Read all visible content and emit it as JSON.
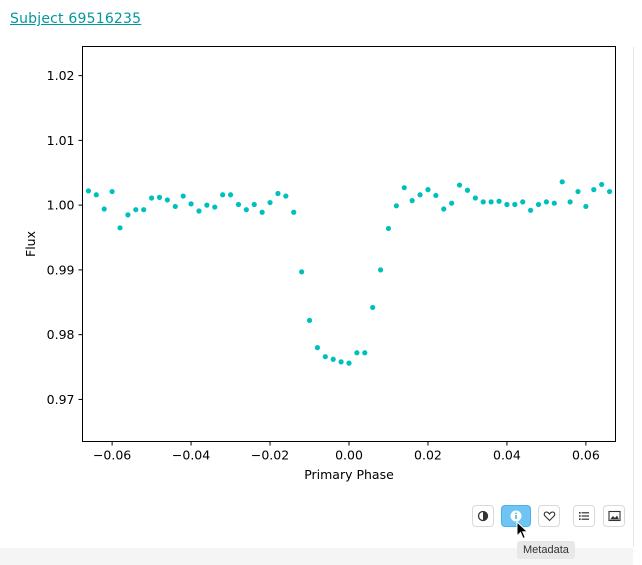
{
  "subject_link": "Subject 69516235",
  "tooltip": "Metadata",
  "toolbar": {
    "buttons": [
      {
        "name": "invert-colors-button",
        "icon": "half-circle-icon",
        "active": false
      },
      {
        "name": "metadata-button",
        "icon": "info-icon",
        "active": true
      },
      {
        "name": "favorite-button",
        "icon": "heart-icon",
        "active": false
      },
      {
        "name": "collections-button",
        "icon": "list-icon",
        "active": false
      },
      {
        "name": "image-button",
        "icon": "image-icon",
        "active": false
      }
    ],
    "accent_color": "#6ec4f3"
  },
  "chart_data": {
    "type": "scatter",
    "title": "",
    "xlabel": "Primary Phase",
    "ylabel": "Flux",
    "xlim": [
      -0.0675,
      0.0675
    ],
    "ylim": [
      0.9635,
      1.0245
    ],
    "xticks": [
      -0.06,
      -0.04,
      -0.02,
      0.0,
      0.02,
      0.04,
      0.06
    ],
    "xtick_labels": [
      "−0.06",
      "−0.04",
      "−0.02",
      "0.00",
      "0.02",
      "0.04",
      "0.06"
    ],
    "yticks": [
      0.97,
      0.98,
      0.99,
      1.0,
      1.01,
      1.02
    ],
    "ytick_labels": [
      "0.97",
      "0.98",
      "0.99",
      "1.00",
      "1.01",
      "1.02"
    ],
    "marker_color": "#00bfbf",
    "grid": false,
    "series": [
      {
        "x": [
          -0.066,
          -0.064,
          -0.062,
          -0.06,
          -0.058,
          -0.056,
          -0.054,
          -0.052,
          -0.05,
          -0.048,
          -0.046,
          -0.044,
          -0.042,
          -0.04,
          -0.038,
          -0.036,
          -0.034,
          -0.032,
          -0.03,
          -0.028,
          -0.026,
          -0.024,
          -0.022,
          -0.02,
          -0.018,
          -0.016,
          -0.014,
          -0.012,
          -0.01,
          -0.008,
          -0.006,
          -0.004,
          -0.002,
          0.0,
          0.002,
          0.004,
          0.006,
          0.008,
          0.01,
          0.012,
          0.014,
          0.016,
          0.018,
          0.02,
          0.022,
          0.024,
          0.026,
          0.028,
          0.03,
          0.032,
          0.034,
          0.036,
          0.038,
          0.04,
          0.042,
          0.044,
          0.046,
          0.048,
          0.05,
          0.052,
          0.054,
          0.056,
          0.058,
          0.06,
          0.062,
          0.064,
          0.066
        ],
        "y": [
          1.0022,
          1.0016,
          0.9994,
          1.0021,
          0.9965,
          0.9985,
          0.9993,
          0.9993,
          1.0011,
          1.0012,
          1.0008,
          0.9998,
          1.0014,
          1.0002,
          0.9991,
          1.0,
          0.9997,
          1.0016,
          1.0016,
          1.0001,
          0.9993,
          1.0001,
          0.9989,
          1.0004,
          1.0018,
          1.0014,
          0.9989,
          0.9897,
          0.9822,
          0.978,
          0.9766,
          0.9762,
          0.9758,
          0.9756,
          0.9772,
          0.9772,
          0.9842,
          0.99,
          0.9964,
          0.9999,
          1.0027,
          1.0007,
          1.0016,
          1.0024,
          1.0015,
          0.9994,
          1.0003,
          1.0031,
          1.0023,
          1.0011,
          1.0005,
          1.0005,
          1.0006,
          1.0001,
          1.0001,
          1.0005,
          0.9992,
          1.0001,
          1.0005,
          1.0003,
          1.0036,
          1.0005,
          1.0021,
          0.9998,
          1.0024,
          1.0032,
          1.0021
        ]
      }
    ]
  }
}
